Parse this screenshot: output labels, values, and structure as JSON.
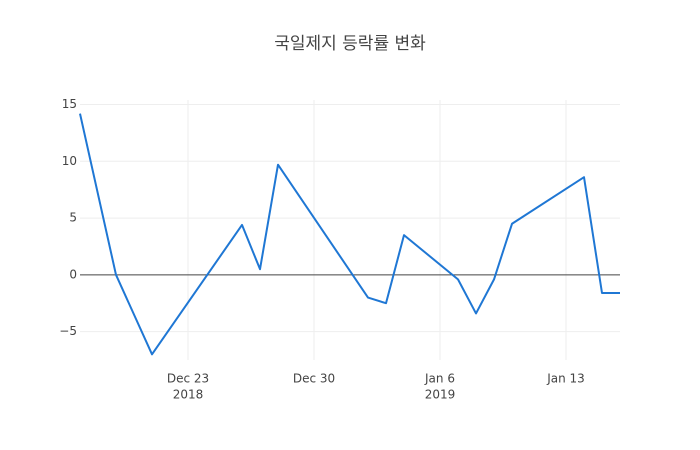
{
  "chart_data": {
    "type": "line",
    "title": "국일제지 등락률 변화",
    "x": [
      "2018-12-17",
      "2018-12-19",
      "2018-12-21",
      "2018-12-26",
      "2018-12-27",
      "2018-12-28",
      "2019-01-02",
      "2019-01-03",
      "2019-01-04",
      "2019-01-07",
      "2019-01-08",
      "2019-01-09",
      "2019-01-10",
      "2019-01-14",
      "2019-01-15",
      "2019-01-16"
    ],
    "series": [
      {
        "color": "#1f77d4",
        "values": [
          14.2,
          0,
          -7.0,
          4.4,
          0.5,
          9.7,
          -2.0,
          -2.5,
          3.5,
          -0.4,
          -3.4,
          -0.4,
          4.5,
          8.6,
          -1.6,
          -1.6
        ]
      }
    ],
    "xlim": [
      "2018-12-17",
      "2019-01-16"
    ],
    "xticks": [
      {
        "value": "2018-12-23",
        "label": [
          "Dec 23",
          "2018"
        ]
      },
      {
        "value": "2018-12-30",
        "label": [
          "Dec 30"
        ]
      },
      {
        "value": "2019-01-06",
        "label": [
          "Jan 6",
          "2019"
        ]
      },
      {
        "value": "2019-01-13",
        "label": [
          "Jan 13"
        ]
      }
    ],
    "ylim": [
      -7.5,
      15.4
    ],
    "yticks": [
      {
        "value": -5,
        "label": "−5"
      },
      0,
      5,
      10,
      15
    ],
    "grid": true,
    "zeroline": true
  }
}
